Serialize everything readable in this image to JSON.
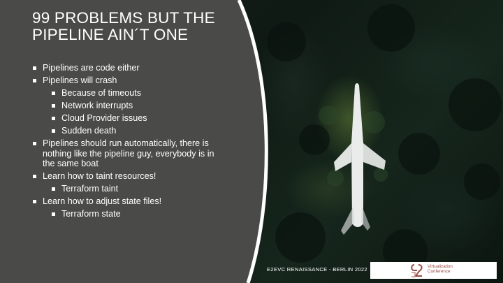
{
  "slide": {
    "title_line1": "99 PROBLEMS BUT THE",
    "title_line2": "PIPELINE AIN´T ONE",
    "bullets": [
      {
        "level": 1,
        "text": "Pipelines are code either"
      },
      {
        "level": 1,
        "text": "Pipelines will crash"
      },
      {
        "level": 2,
        "text": "Because of timeouts"
      },
      {
        "level": 2,
        "text": "Network interrupts"
      },
      {
        "level": 2,
        "text": "Cloud Provider issues"
      },
      {
        "level": 2,
        "text": "Sudden death"
      },
      {
        "level": 1,
        "text": "Pipelines should run automatically, there is nothing like the pipeline guy, everybody is in the same boat"
      },
      {
        "level": 1,
        "text": "Learn how to taint resources!"
      },
      {
        "level": 2,
        "text": "Terraform taint"
      },
      {
        "level": 1,
        "text": "Learn how to adjust state files!"
      },
      {
        "level": 2,
        "text": "Terraform state"
      }
    ],
    "footer": "E2EVC RENAISSANCE - BERLIN 2022",
    "logo_text_line1": "Virtualization",
    "logo_text_line2": "Conference"
  },
  "colors": {
    "panel": "#4a4a48",
    "panel_edge": "#ffffff",
    "text": "#ffffff",
    "logo_accent": "#9a4a44"
  },
  "icons": [
    "e2evc-logo-icon",
    "bullet-square-icon"
  ]
}
